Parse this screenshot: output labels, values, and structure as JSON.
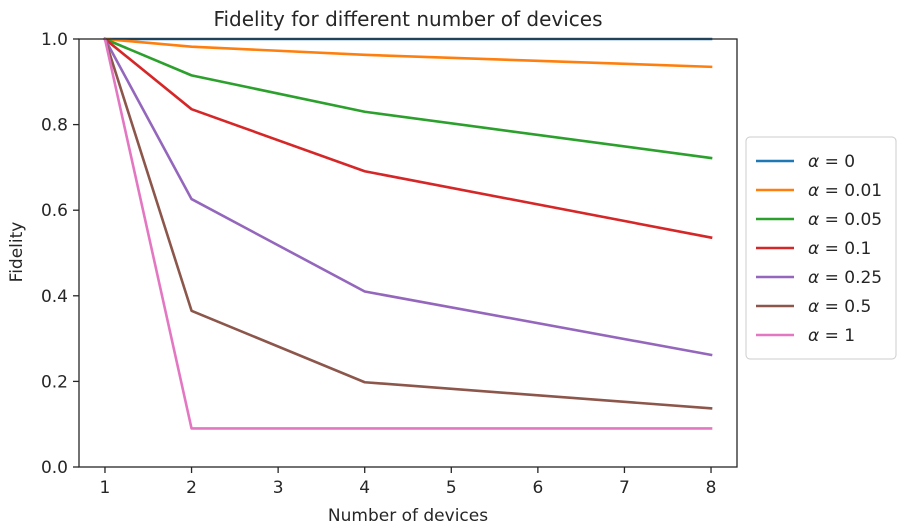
{
  "chart_data": {
    "type": "line",
    "title": "Fidelity for different number of devices",
    "xlabel": "Number of devices",
    "ylabel": "Fidelity",
    "x": [
      1,
      2,
      4,
      8
    ],
    "xlim": [
      0.7,
      8.3
    ],
    "ylim": [
      0.0,
      1.0
    ],
    "xticks": [
      1,
      2,
      3,
      4,
      5,
      6,
      7,
      8
    ],
    "yticks": [
      "0.0",
      "0.2",
      "0.4",
      "0.6",
      "0.8",
      "1.0"
    ],
    "grid": false,
    "legend_position": "right",
    "series": [
      {
        "name_symbol": "α",
        "name_rest": " = 0",
        "color": "#1f77b4",
        "values": [
          1.0,
          1.0,
          1.0,
          1.0
        ]
      },
      {
        "name_symbol": "α",
        "name_rest": " = 0.01",
        "color": "#ff7f0e",
        "values": [
          1.0,
          0.982,
          0.963,
          0.935
        ]
      },
      {
        "name_symbol": "α",
        "name_rest": " = 0.05",
        "color": "#2ca02c",
        "values": [
          1.0,
          0.915,
          0.83,
          0.722
        ]
      },
      {
        "name_symbol": "α",
        "name_rest": " = 0.1",
        "color": "#d62728",
        "values": [
          1.0,
          0.836,
          0.691,
          0.536
        ]
      },
      {
        "name_symbol": "α",
        "name_rest": " = 0.25",
        "color": "#9467bd",
        "values": [
          1.0,
          0.626,
          0.41,
          0.262
        ]
      },
      {
        "name_symbol": "α",
        "name_rest": " = 0.5",
        "color": "#8c564b",
        "values": [
          1.0,
          0.365,
          0.198,
          0.137
        ]
      },
      {
        "name_symbol": "α",
        "name_rest": " = 1",
        "color": "#e377c2",
        "values": [
          1.0,
          0.09,
          0.09,
          0.09
        ]
      }
    ]
  }
}
